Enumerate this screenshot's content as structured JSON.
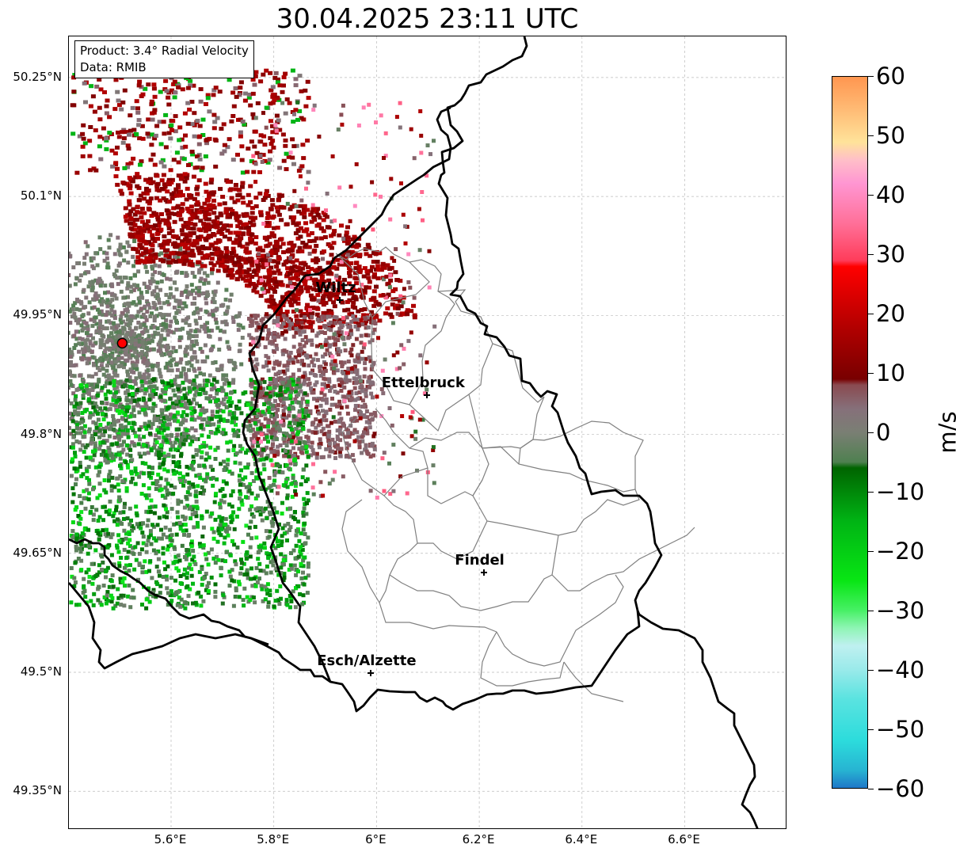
{
  "title": "30.04.2025 23:11 UTC",
  "info_box": {
    "product": "Product: 3.4° Radial Velocity",
    "data": "Data: RMIB"
  },
  "map": {
    "lon_range": [
      5.4,
      6.8
    ],
    "lat_range": [
      49.3,
      50.3
    ],
    "lat_ticks": [
      "50.25°N",
      "50.1°N",
      "49.95°N",
      "49.8°N",
      "49.65°N",
      "49.5°N",
      "49.35°N"
    ],
    "lon_ticks": [
      "5.6°E",
      "5.8°E",
      "6°E",
      "6.2°E",
      "6.4°E",
      "6.6°E"
    ],
    "grid": true,
    "radar_site": {
      "lon": 5.505,
      "lat": 49.915,
      "color": "#ff0000"
    },
    "cities": [
      {
        "name": "Wiltz",
        "lon": 5.93,
        "lat": 49.968
      },
      {
        "name": "Ettelbruck",
        "lon": 6.1,
        "lat": 49.848
      },
      {
        "name": "Findel",
        "lon": 6.21,
        "lat": 49.625
      },
      {
        "name": "Esch/Alzette",
        "lon": 5.99,
        "lat": 49.498
      }
    ]
  },
  "colorbar": {
    "unit": "m/s",
    "min": -60,
    "max": 60,
    "tick_labels": [
      "60",
      "50",
      "40",
      "30",
      "20",
      "10",
      "0",
      "−10",
      "−20",
      "−30",
      "−40",
      "−50",
      "−60"
    ],
    "tick_values": [
      60,
      50,
      40,
      30,
      20,
      10,
      0,
      -10,
      -20,
      -30,
      -40,
      -50,
      -60
    ],
    "color_stops": [
      {
        "v": -60,
        "c": "#1f78c8"
      },
      {
        "v": -57,
        "c": "#27b4d2"
      },
      {
        "v": -52,
        "c": "#2cdcdc"
      },
      {
        "v": -45,
        "c": "#5ae3e0"
      },
      {
        "v": -40,
        "c": "#9aeaea"
      },
      {
        "v": -36,
        "c": "#bff0f0"
      },
      {
        "v": -33,
        "c": "#8ef5b4"
      },
      {
        "v": -30,
        "c": "#46f064"
      },
      {
        "v": -25,
        "c": "#08e614"
      },
      {
        "v": -15,
        "c": "#00b414"
      },
      {
        "v": -6,
        "c": "#006400"
      },
      {
        "v": -5,
        "c": "#4f8050"
      },
      {
        "v": 0,
        "c": "#7a7f74"
      },
      {
        "v": 4,
        "c": "#86707a"
      },
      {
        "v": 8,
        "c": "#8a4a50"
      },
      {
        "v": 9,
        "c": "#780000"
      },
      {
        "v": 18,
        "c": "#b40000"
      },
      {
        "v": 28,
        "c": "#ff0000"
      },
      {
        "v": 29,
        "c": "#ff3c5a"
      },
      {
        "v": 35,
        "c": "#ff6e96"
      },
      {
        "v": 42,
        "c": "#ff96d2"
      },
      {
        "v": 46,
        "c": "#ffbfc8"
      },
      {
        "v": 49,
        "c": "#ffe39a"
      },
      {
        "v": 54,
        "c": "#ffbe78"
      },
      {
        "v": 60,
        "c": "#ff9650"
      }
    ]
  },
  "colors": {
    "border": "#000000",
    "canton_border": "#808080",
    "grid": "#bbbbbb"
  }
}
